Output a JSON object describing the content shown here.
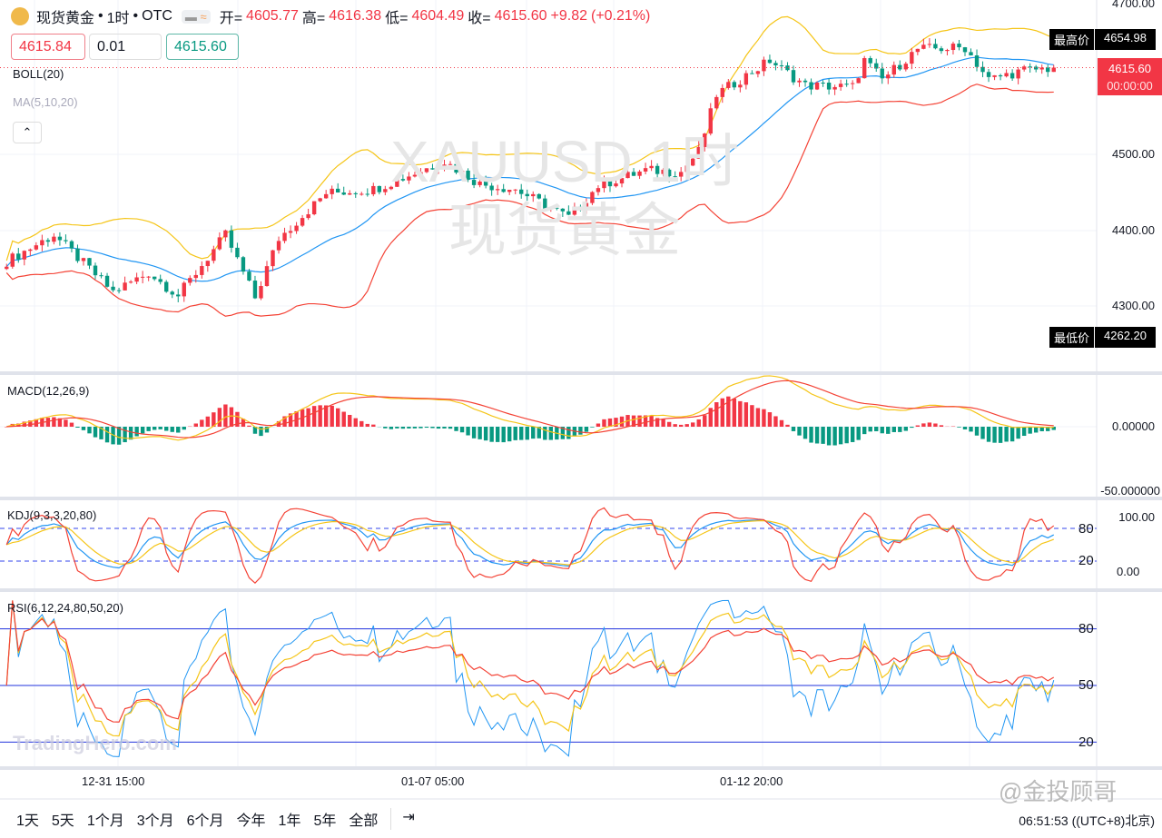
{
  "header": {
    "symbol": "现货黄金",
    "interval": "1时",
    "exchange": "OTC",
    "open_label": "开=",
    "open": "4605.77",
    "high_label": "高=",
    "high": "4616.38",
    "low_label": "低=",
    "low": "4604.49",
    "close_label": "收=",
    "close": "4615.60",
    "change": "+9.82",
    "change_pct": "(+0.21%)"
  },
  "order": {
    "sell_price": "4615.84",
    "quantity": "0.01",
    "buy_price": "4615.60"
  },
  "indicators": {
    "boll": "BOLL(20)",
    "ma": "MA(5,10,20)",
    "macd": "MACD(12,26,9)",
    "kdj": "KDJ(9,3,3,20,80)",
    "rsi": "RSI(6,12,24,80,50,20)"
  },
  "watermark": {
    "line1": "XAUUSD 1时",
    "line2": "现货黄金",
    "brand": "TradingHero.com",
    "social": "@金投顾哥"
  },
  "price_axis": {
    "ticks": [
      "4700.00",
      "4500.00",
      "4400.00",
      "4300.00"
    ],
    "high_label": "最高价",
    "high_value": "4654.98",
    "low_label": "最低价",
    "low_value": "4262.20",
    "last_price": "4615.60",
    "countdown": "00:00:00"
  },
  "macd_axis": {
    "ticks": [
      "0.00000",
      "-50.000000"
    ]
  },
  "kdj_axis": {
    "ticks": [
      "100.00",
      "80",
      "20",
      "0.00"
    ]
  },
  "rsi_axis": {
    "ticks": [
      "80",
      "50",
      "20"
    ]
  },
  "time_axis": {
    "ticks": [
      "12-31 15:00",
      "01-07 05:00",
      "01-12 20:00"
    ]
  },
  "toolbar": {
    "ranges": [
      "1天",
      "5天",
      "1个月",
      "3个月",
      "6个月",
      "今年",
      "1年",
      "5年",
      "全部"
    ],
    "clock": "06:51:53 ((UTC+8)北京)"
  },
  "colors": {
    "up": "#f23645",
    "down": "#089981",
    "boll_upper": "#f5c518",
    "boll_mid": "#2196f3",
    "boll_lower": "#f44336"
  },
  "chart_data": {
    "type": "candlestick",
    "candles": 178,
    "anchor_closes": [
      [
        0,
        4360
      ],
      [
        8,
        4395
      ],
      [
        18,
        4320
      ],
      [
        24,
        4345
      ],
      [
        29,
        4315
      ],
      [
        37,
        4395
      ],
      [
        42,
        4312
      ],
      [
        46,
        4390
      ],
      [
        54,
        4450
      ],
      [
        62,
        4455
      ],
      [
        74,
        4492
      ],
      [
        80,
        4462
      ],
      [
        86,
        4455
      ],
      [
        95,
        4418
      ],
      [
        100,
        4460
      ],
      [
        108,
        4480
      ],
      [
        114,
        4478
      ],
      [
        117,
        4505
      ],
      [
        120,
        4580
      ],
      [
        129,
        4625
      ],
      [
        135,
        4592
      ],
      [
        143,
        4590
      ],
      [
        145,
        4625
      ],
      [
        148,
        4600
      ],
      [
        154,
        4640
      ],
      [
        162,
        4642
      ],
      [
        166,
        4600
      ],
      [
        172,
        4612
      ],
      [
        177,
        4615
      ]
    ],
    "ylim": [
      4240,
      4705
    ]
  }
}
